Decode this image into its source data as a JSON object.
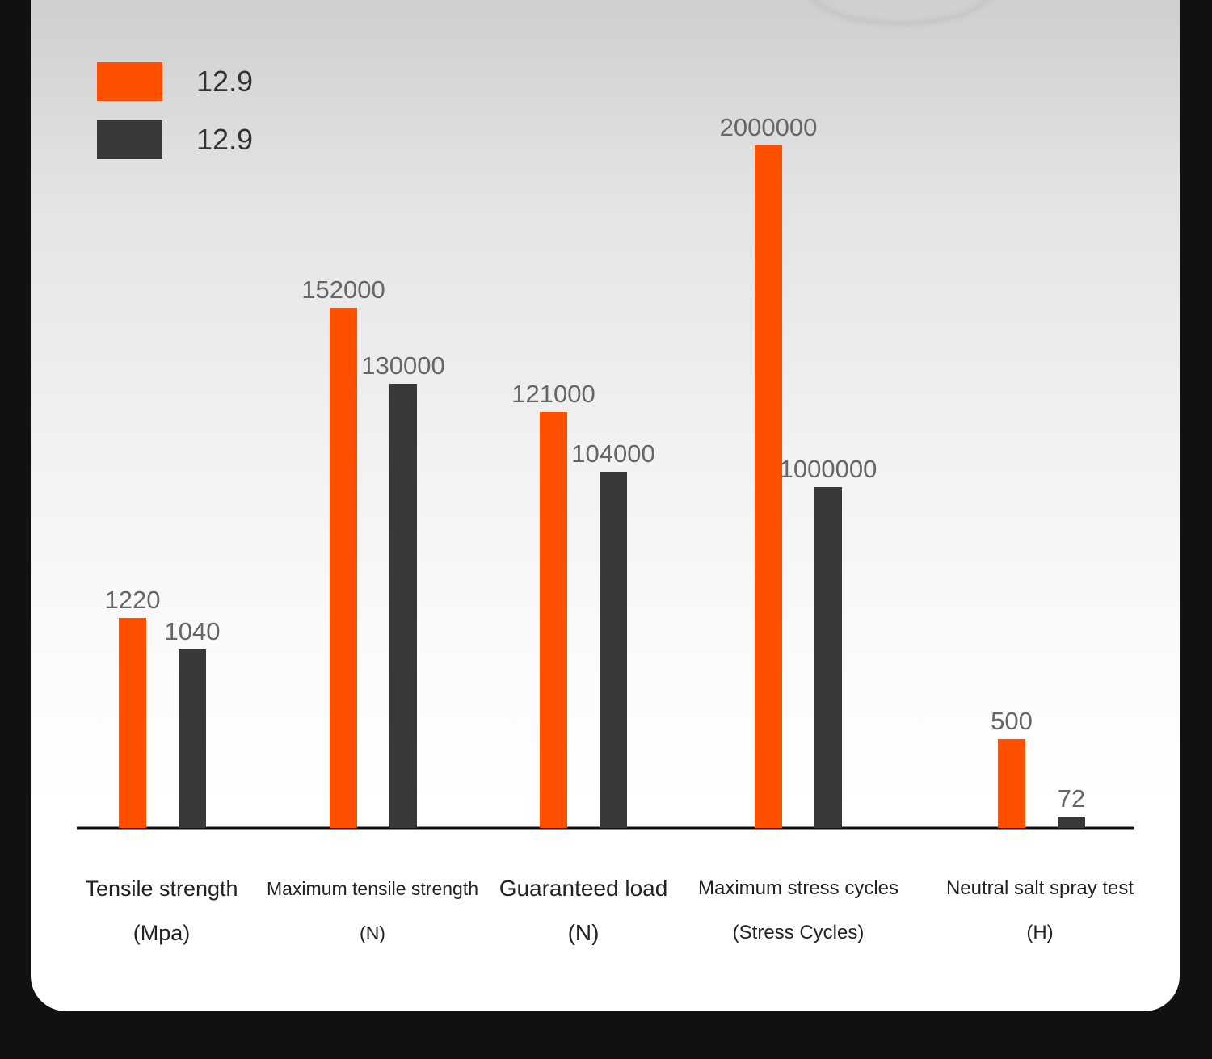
{
  "chart_data": {
    "type": "bar",
    "title": "",
    "xlabel": "",
    "ylabel": "",
    "categories": [
      {
        "name": "Tensile strength",
        "unit": "(Mpa)"
      },
      {
        "name": "Maximum tensile strength",
        "unit": "(N)"
      },
      {
        "name": "Guaranteed load",
        "unit": "(N)"
      },
      {
        "name": "Maximum stress cycles",
        "unit": "(Stress Cycles)"
      },
      {
        "name": "Neutral salt spray test",
        "unit": "(H)"
      }
    ],
    "series": [
      {
        "name": "12.9",
        "color": "#FF5000",
        "values": [
          1220,
          152000,
          121000,
          2000000,
          500
        ],
        "labels": [
          "1220",
          "152000",
          "121000",
          "2000000",
          "500"
        ]
      },
      {
        "name": "12.9",
        "color": "#383838",
        "values": [
          1040,
          130000,
          104000,
          1000000,
          72
        ],
        "labels": [
          "1040",
          "130000",
          "104000",
          "1000000",
          "72"
        ]
      }
    ],
    "legend_position": "top-left",
    "grid": false
  }
}
